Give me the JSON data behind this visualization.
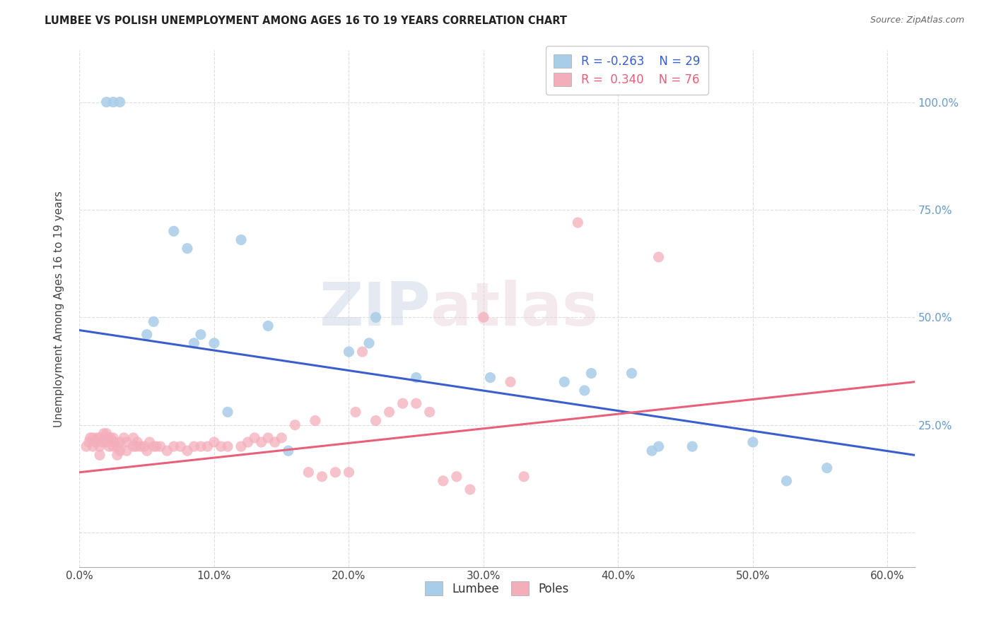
{
  "title": "LUMBEE VS POLISH UNEMPLOYMENT AMONG AGES 16 TO 19 YEARS CORRELATION CHART",
  "source": "Source: ZipAtlas.com",
  "ylabel": "Unemployment Among Ages 16 to 19 years",
  "xlim": [
    0.0,
    0.62
  ],
  "ylim": [
    -0.08,
    1.12
  ],
  "lumbee_color": "#A8CDE8",
  "poles_color": "#F4AEBB",
  "lumbee_line_color": "#3A5FCD",
  "poles_line_color": "#E8607A",
  "legend_r_lumbee": "R = -0.263",
  "legend_n_lumbee": "N = 29",
  "legend_r_poles": "R =  0.340",
  "legend_n_poles": "N = 76",
  "watermark_zip": "ZIP",
  "watermark_atlas": "atlas",
  "lumbee_x": [
    0.02,
    0.025,
    0.03,
    0.05,
    0.055,
    0.07,
    0.08,
    0.085,
    0.09,
    0.1,
    0.11,
    0.12,
    0.14,
    0.155,
    0.2,
    0.215,
    0.22,
    0.25,
    0.305,
    0.36,
    0.375,
    0.38,
    0.41,
    0.425,
    0.43,
    0.455,
    0.5,
    0.525,
    0.555
  ],
  "lumbee_y": [
    1.0,
    1.0,
    1.0,
    0.46,
    0.49,
    0.7,
    0.66,
    0.44,
    0.46,
    0.44,
    0.28,
    0.68,
    0.48,
    0.19,
    0.42,
    0.44,
    0.5,
    0.36,
    0.36,
    0.35,
    0.33,
    0.37,
    0.37,
    0.19,
    0.2,
    0.2,
    0.21,
    0.12,
    0.15
  ],
  "poles_x": [
    0.005,
    0.007,
    0.008,
    0.01,
    0.01,
    0.012,
    0.013,
    0.015,
    0.015,
    0.015,
    0.017,
    0.018,
    0.02,
    0.02,
    0.021,
    0.022,
    0.023,
    0.025,
    0.025,
    0.026,
    0.028,
    0.028,
    0.03,
    0.03,
    0.033,
    0.035,
    0.035,
    0.04,
    0.04,
    0.042,
    0.043,
    0.045,
    0.048,
    0.05,
    0.052,
    0.055,
    0.057,
    0.06,
    0.065,
    0.07,
    0.075,
    0.08,
    0.085,
    0.09,
    0.095,
    0.1,
    0.105,
    0.11,
    0.12,
    0.125,
    0.13,
    0.135,
    0.14,
    0.145,
    0.15,
    0.16,
    0.17,
    0.175,
    0.18,
    0.19,
    0.2,
    0.205,
    0.21,
    0.22,
    0.23,
    0.24,
    0.25,
    0.26,
    0.27,
    0.28,
    0.29,
    0.3,
    0.32,
    0.33,
    0.37,
    0.43
  ],
  "poles_y": [
    0.2,
    0.21,
    0.22,
    0.2,
    0.22,
    0.21,
    0.22,
    0.18,
    0.2,
    0.22,
    0.21,
    0.23,
    0.21,
    0.23,
    0.22,
    0.2,
    0.22,
    0.2,
    0.22,
    0.21,
    0.18,
    0.2,
    0.19,
    0.21,
    0.22,
    0.19,
    0.21,
    0.2,
    0.22,
    0.2,
    0.21,
    0.2,
    0.2,
    0.19,
    0.21,
    0.2,
    0.2,
    0.2,
    0.19,
    0.2,
    0.2,
    0.19,
    0.2,
    0.2,
    0.2,
    0.21,
    0.2,
    0.2,
    0.2,
    0.21,
    0.22,
    0.21,
    0.22,
    0.21,
    0.22,
    0.25,
    0.14,
    0.26,
    0.13,
    0.14,
    0.14,
    0.28,
    0.42,
    0.26,
    0.28,
    0.3,
    0.3,
    0.28,
    0.12,
    0.13,
    0.1,
    0.5,
    0.35,
    0.13,
    0.72,
    0.64
  ],
  "lumbee_trendline": [
    0.47,
    0.18
  ],
  "poles_trendline": [
    0.14,
    0.35
  ],
  "grid_color": "#DDDDDD",
  "tick_color_right": "#6699CC"
}
